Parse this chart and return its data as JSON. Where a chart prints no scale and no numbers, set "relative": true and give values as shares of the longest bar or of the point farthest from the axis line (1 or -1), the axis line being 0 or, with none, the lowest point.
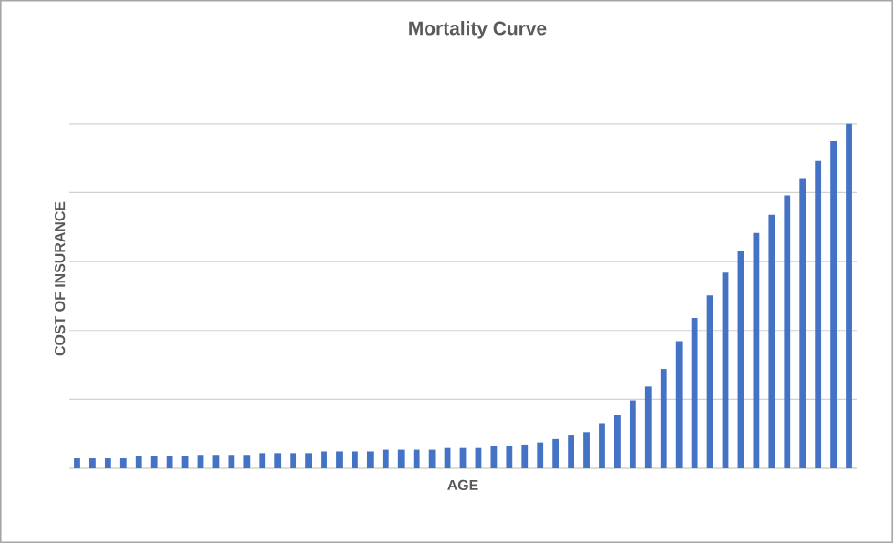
{
  "chart_data": {
    "type": "bar",
    "title": "Mortality Curve",
    "xlabel": "AGE",
    "ylabel": "COST OF INSURANCE",
    "categories": [
      null,
      null,
      null,
      null,
      null,
      null,
      null,
      null,
      null,
      null,
      null,
      null,
      null,
      null,
      null,
      null,
      null,
      null,
      null,
      null,
      null,
      null,
      null,
      null,
      null,
      null,
      null,
      null,
      null,
      null,
      null,
      null,
      null,
      null,
      null,
      null,
      null,
      null,
      null,
      null,
      null,
      null,
      null,
      null,
      null,
      null,
      null,
      null,
      null,
      null,
      null
    ],
    "values": [
      0.029,
      0.029,
      0.029,
      0.029,
      0.036,
      0.036,
      0.036,
      0.036,
      0.039,
      0.039,
      0.039,
      0.039,
      0.044,
      0.044,
      0.044,
      0.044,
      0.049,
      0.049,
      0.049,
      0.049,
      0.054,
      0.054,
      0.054,
      0.054,
      0.059,
      0.059,
      0.059,
      0.064,
      0.064,
      0.069,
      0.075,
      0.085,
      0.095,
      0.105,
      0.131,
      0.156,
      0.197,
      0.237,
      0.288,
      0.369,
      0.436,
      0.502,
      0.568,
      0.632,
      0.683,
      0.736,
      0.792,
      0.842,
      0.892,
      0.949,
      1
    ],
    "color": "#4472c4",
    "relative": true,
    "grid": "y"
  }
}
